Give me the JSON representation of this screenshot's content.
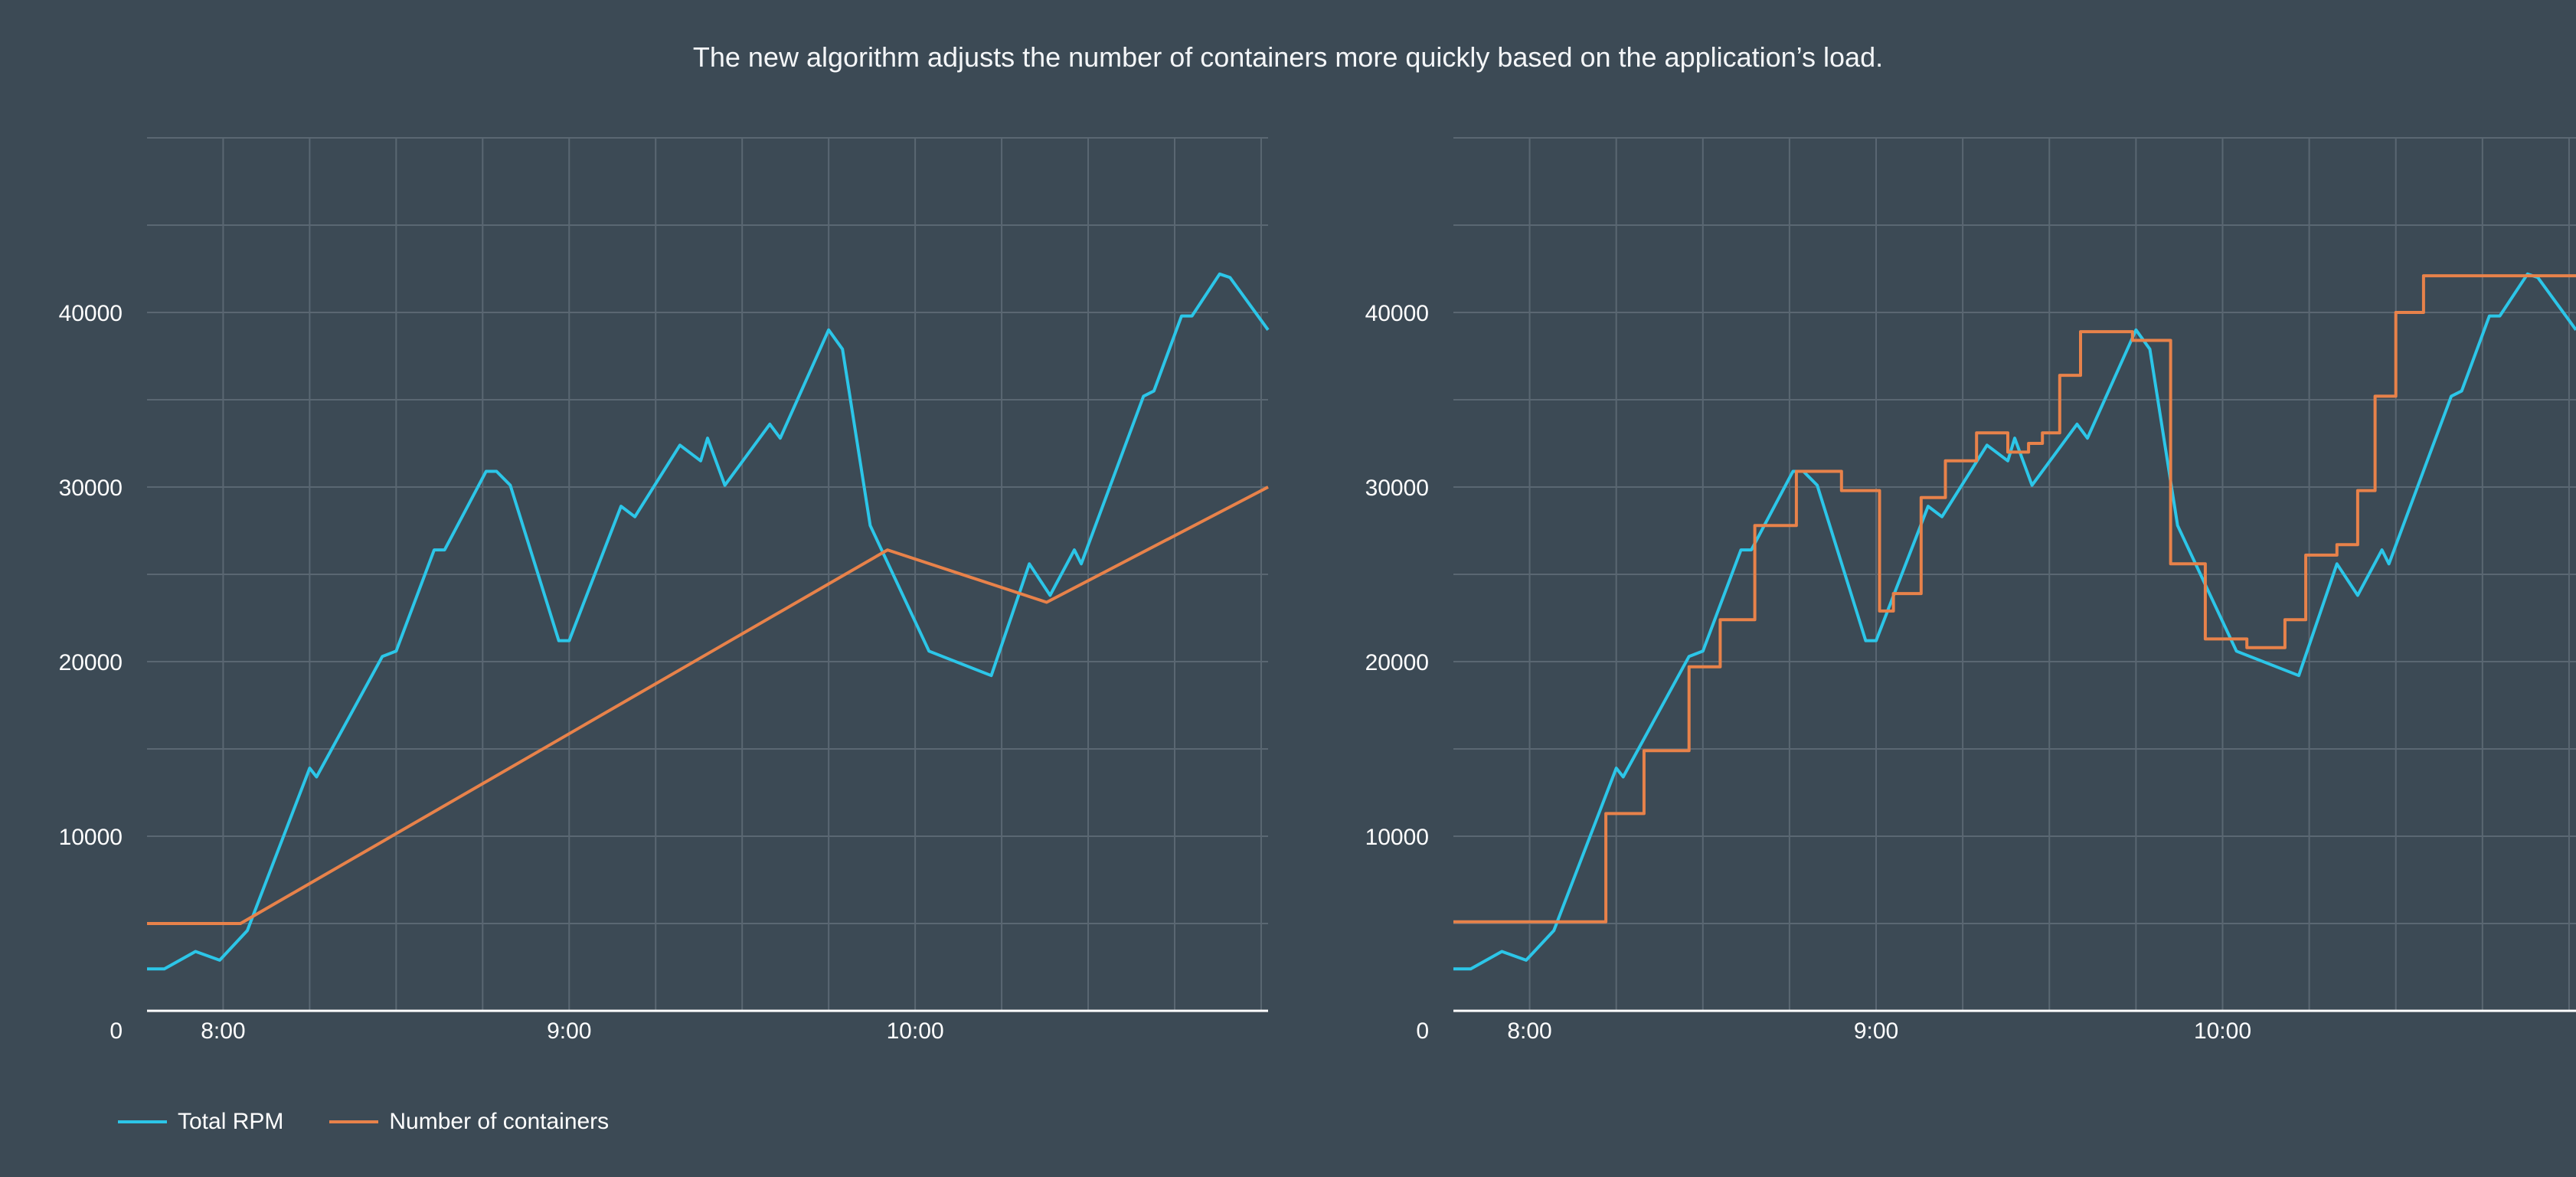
{
  "title": "The new algorithm adjusts the number of containers more quickly based on the application’s load.",
  "colors": {
    "background": "#3c4a55",
    "grid": "#5a6772",
    "rpm": "#2cc6e8",
    "containers": "#e8824a"
  },
  "legend": {
    "items": [
      {
        "label": "Total RPM",
        "color": "#2cc6e8"
      },
      {
        "label": "Number of containers",
        "color": "#e8824a"
      }
    ]
  },
  "chart_data": [
    {
      "type": "line",
      "title": "",
      "xlabel": "",
      "ylabel": "",
      "xlim": [
        7.78,
        11.02
      ],
      "ylim": [
        0,
        50000
      ],
      "x_ticks": [
        {
          "value": 8.0,
          "label": "8:00"
        },
        {
          "value": 9.0,
          "label": "9:00"
        },
        {
          "value": 10.0,
          "label": "10:00"
        }
      ],
      "y_ticks": [
        {
          "value": 0,
          "label": "0"
        },
        {
          "value": 10000,
          "label": "10000"
        },
        {
          "value": 20000,
          "label": "20000"
        },
        {
          "value": 30000,
          "label": "30000"
        },
        {
          "value": 40000,
          "label": "40000"
        }
      ],
      "grid": true,
      "legend": "bottom-left",
      "series": [
        {
          "name": "Total RPM",
          "color": "#2cc6e8",
          "x": [
            7.78,
            7.83,
            7.92,
            7.99,
            8.07,
            8.25,
            8.27,
            8.46,
            8.5,
            8.61,
            8.64,
            8.76,
            8.79,
            8.83,
            8.97,
            9.0,
            9.15,
            9.19,
            9.32,
            9.38,
            9.4,
            9.45,
            9.58,
            9.61,
            9.75,
            9.79,
            9.87,
            10.04,
            10.22,
            10.33,
            10.39,
            10.46,
            10.48,
            10.66,
            10.69,
            10.77,
            10.8,
            10.88,
            10.91,
            11.02
          ],
          "y": [
            2400,
            2400,
            3400,
            2900,
            4600,
            13900,
            13400,
            20300,
            20600,
            26400,
            26400,
            30900,
            30900,
            30100,
            21200,
            21200,
            28900,
            28300,
            32400,
            31500,
            32800,
            30100,
            33600,
            32800,
            39000,
            37900,
            27800,
            20600,
            19200,
            25600,
            23800,
            26400,
            25600,
            35200,
            35500,
            39800,
            39800,
            42200,
            42000,
            39000
          ]
        },
        {
          "name": "Number of containers",
          "color": "#e8824a",
          "x": [
            7.78,
            8.05,
            9.92,
            10.38,
            11.02
          ],
          "y": [
            5000,
            5000,
            26400,
            23400,
            30000
          ]
        }
      ]
    },
    {
      "type": "line",
      "title": "",
      "xlabel": "",
      "ylabel": "",
      "xlim": [
        7.78,
        11.02
      ],
      "ylim": [
        0,
        50000
      ],
      "x_ticks": [
        {
          "value": 8.0,
          "label": "8:00"
        },
        {
          "value": 9.0,
          "label": "9:00"
        },
        {
          "value": 10.0,
          "label": "10:00"
        }
      ],
      "y_ticks": [
        {
          "value": 0,
          "label": "0"
        },
        {
          "value": 10000,
          "label": "10000"
        },
        {
          "value": 20000,
          "label": "20000"
        },
        {
          "value": 30000,
          "label": "30000"
        },
        {
          "value": 40000,
          "label": "40000"
        }
      ],
      "grid": true,
      "legend": "bottom-left",
      "series": [
        {
          "name": "Total RPM",
          "color": "#2cc6e8",
          "x": [
            7.78,
            7.83,
            7.92,
            7.99,
            8.07,
            8.25,
            8.27,
            8.46,
            8.5,
            8.61,
            8.64,
            8.76,
            8.79,
            8.83,
            8.97,
            9.0,
            9.15,
            9.19,
            9.32,
            9.38,
            9.4,
            9.45,
            9.58,
            9.61,
            9.75,
            9.79,
            9.87,
            10.04,
            10.22,
            10.33,
            10.39,
            10.46,
            10.48,
            10.66,
            10.69,
            10.77,
            10.8,
            10.88,
            10.91,
            11.02
          ],
          "y": [
            2400,
            2400,
            3400,
            2900,
            4600,
            13900,
            13400,
            20300,
            20600,
            26400,
            26400,
            30900,
            30900,
            30100,
            21200,
            21200,
            28900,
            28300,
            32400,
            31500,
            32800,
            30100,
            33600,
            32800,
            39000,
            37900,
            27800,
            20600,
            19200,
            25600,
            23800,
            26400,
            25600,
            35200,
            35500,
            39800,
            39800,
            42200,
            42000,
            39000
          ]
        },
        {
          "name": "Number of containers",
          "color": "#e8824a",
          "x": [
            7.78,
            8.22,
            8.22,
            8.33,
            8.33,
            8.46,
            8.46,
            8.55,
            8.55,
            8.65,
            8.65,
            8.77,
            8.77,
            8.9,
            8.9,
            9.01,
            9.01,
            9.05,
            9.05,
            9.13,
            9.13,
            9.2,
            9.2,
            9.29,
            9.29,
            9.38,
            9.38,
            9.44,
            9.44,
            9.48,
            9.48,
            9.53,
            9.53,
            9.59,
            9.59,
            9.65,
            9.65,
            9.74,
            9.74,
            9.85,
            9.85,
            9.95,
            9.95,
            10.07,
            10.07,
            10.18,
            10.18,
            10.24,
            10.24,
            10.33,
            10.33,
            10.39,
            10.39,
            10.44,
            10.44,
            10.5,
            10.5,
            10.58,
            10.58,
            10.67,
            10.67,
            10.75,
            10.75,
            10.81,
            10.81,
            10.88,
            10.88,
            11.02
          ],
          "y": [
            5100,
            5100,
            11300,
            11300,
            14900,
            14900,
            19700,
            19700,
            22400,
            22400,
            27800,
            27800,
            30900,
            30900,
            29800,
            29800,
            22900,
            22900,
            23900,
            23900,
            29400,
            29400,
            31500,
            31500,
            33100,
            33100,
            32000,
            32000,
            32500,
            32500,
            33100,
            33100,
            36400,
            36400,
            38900,
            38900,
            38900,
            38900,
            38400,
            38400,
            25600,
            25600,
            21300,
            21300,
            20800,
            20800,
            22400,
            22400,
            26100,
            26100,
            26700,
            26700,
            29800,
            29800,
            35200,
            35200,
            40000,
            40000,
            42100,
            42100,
            42100,
            42100,
            42100,
            42100,
            42100,
            42100,
            42100,
            42100
          ]
        }
      ]
    }
  ]
}
